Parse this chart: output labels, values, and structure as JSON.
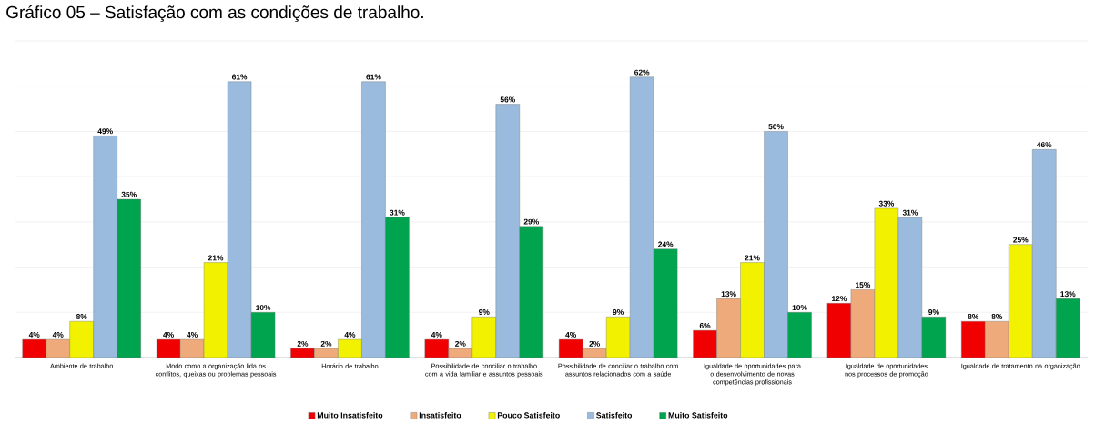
{
  "chart_data": {
    "type": "bar",
    "title": "Gráfico 05 – Satisfação com as condições de trabalho.",
    "categories": [
      "Ambiente de trabalho",
      "Modo como a organização lida os conflitos, queixas ou problemas pessoais",
      "Horário de trabalho",
      "Possibilidade de conciliar o trabalho com a vida familiar e assuntos pessoais",
      "Possibilidade de conciliar o trabalho com assuntos relacionados com a saúde",
      "Igualdade de oportunidades para o desenvolvimento de novas competências profissionais",
      "Igualdade de oportunidades nos processos de promoção",
      "Igualdade de tratamento na organização"
    ],
    "series": [
      {
        "name": "Muito Insatisfeito",
        "color": "#f00000",
        "values": [
          4,
          4,
          2,
          4,
          4,
          6,
          12,
          8
        ],
        "value_labels": [
          "4%",
          "4%",
          "2%",
          "4%",
          "4%",
          "6%",
          "12%",
          "8%"
        ]
      },
      {
        "name": "Insatisfeito",
        "color": "#eeaa7a",
        "values": [
          4,
          4,
          2,
          2,
          2,
          13,
          15,
          8
        ],
        "value_labels": [
          "4%",
          "4%",
          "2%",
          "2%",
          "2%",
          "13%",
          "15%",
          "8%"
        ]
      },
      {
        "name": "Pouco Satisfeito",
        "color": "#f2f200",
        "values": [
          8,
          21,
          4,
          9,
          9,
          21,
          33,
          25
        ],
        "value_labels": [
          "8%",
          "21%",
          "4%",
          "9%",
          "9%",
          "21%",
          "33%",
          "25%"
        ]
      },
      {
        "name": "Satisfeito",
        "color": "#9abbde",
        "values": [
          49,
          61,
          61,
          56,
          62,
          50,
          31,
          46
        ],
        "value_labels": [
          "49%",
          "61%",
          "61%",
          "56%",
          "62%",
          "50%",
          "31%",
          "46%"
        ]
      },
      {
        "name": "Muito Satisfeito",
        "color": "#00a44f",
        "values": [
          35,
          10,
          31,
          29,
          24,
          10,
          9,
          13
        ],
        "value_labels": [
          "35%",
          "10%",
          "31%",
          "29%",
          "24%",
          "10%",
          "9%",
          "13%"
        ]
      }
    ],
    "ylim": [
      0,
      70
    ],
    "yticks": [
      {
        "value": 0,
        "label": null
      },
      {
        "value": 10,
        "label": null
      },
      {
        "value": 20,
        "label": null
      },
      {
        "value": 30,
        "label": null
      },
      {
        "value": 40,
        "label": null
      },
      {
        "value": 50,
        "label": null
      },
      {
        "value": 60,
        "label": null
      },
      {
        "value": 70,
        "label": null
      }
    ],
    "grid": "y",
    "legend": "bottom",
    "tick_labels": "x"
  }
}
